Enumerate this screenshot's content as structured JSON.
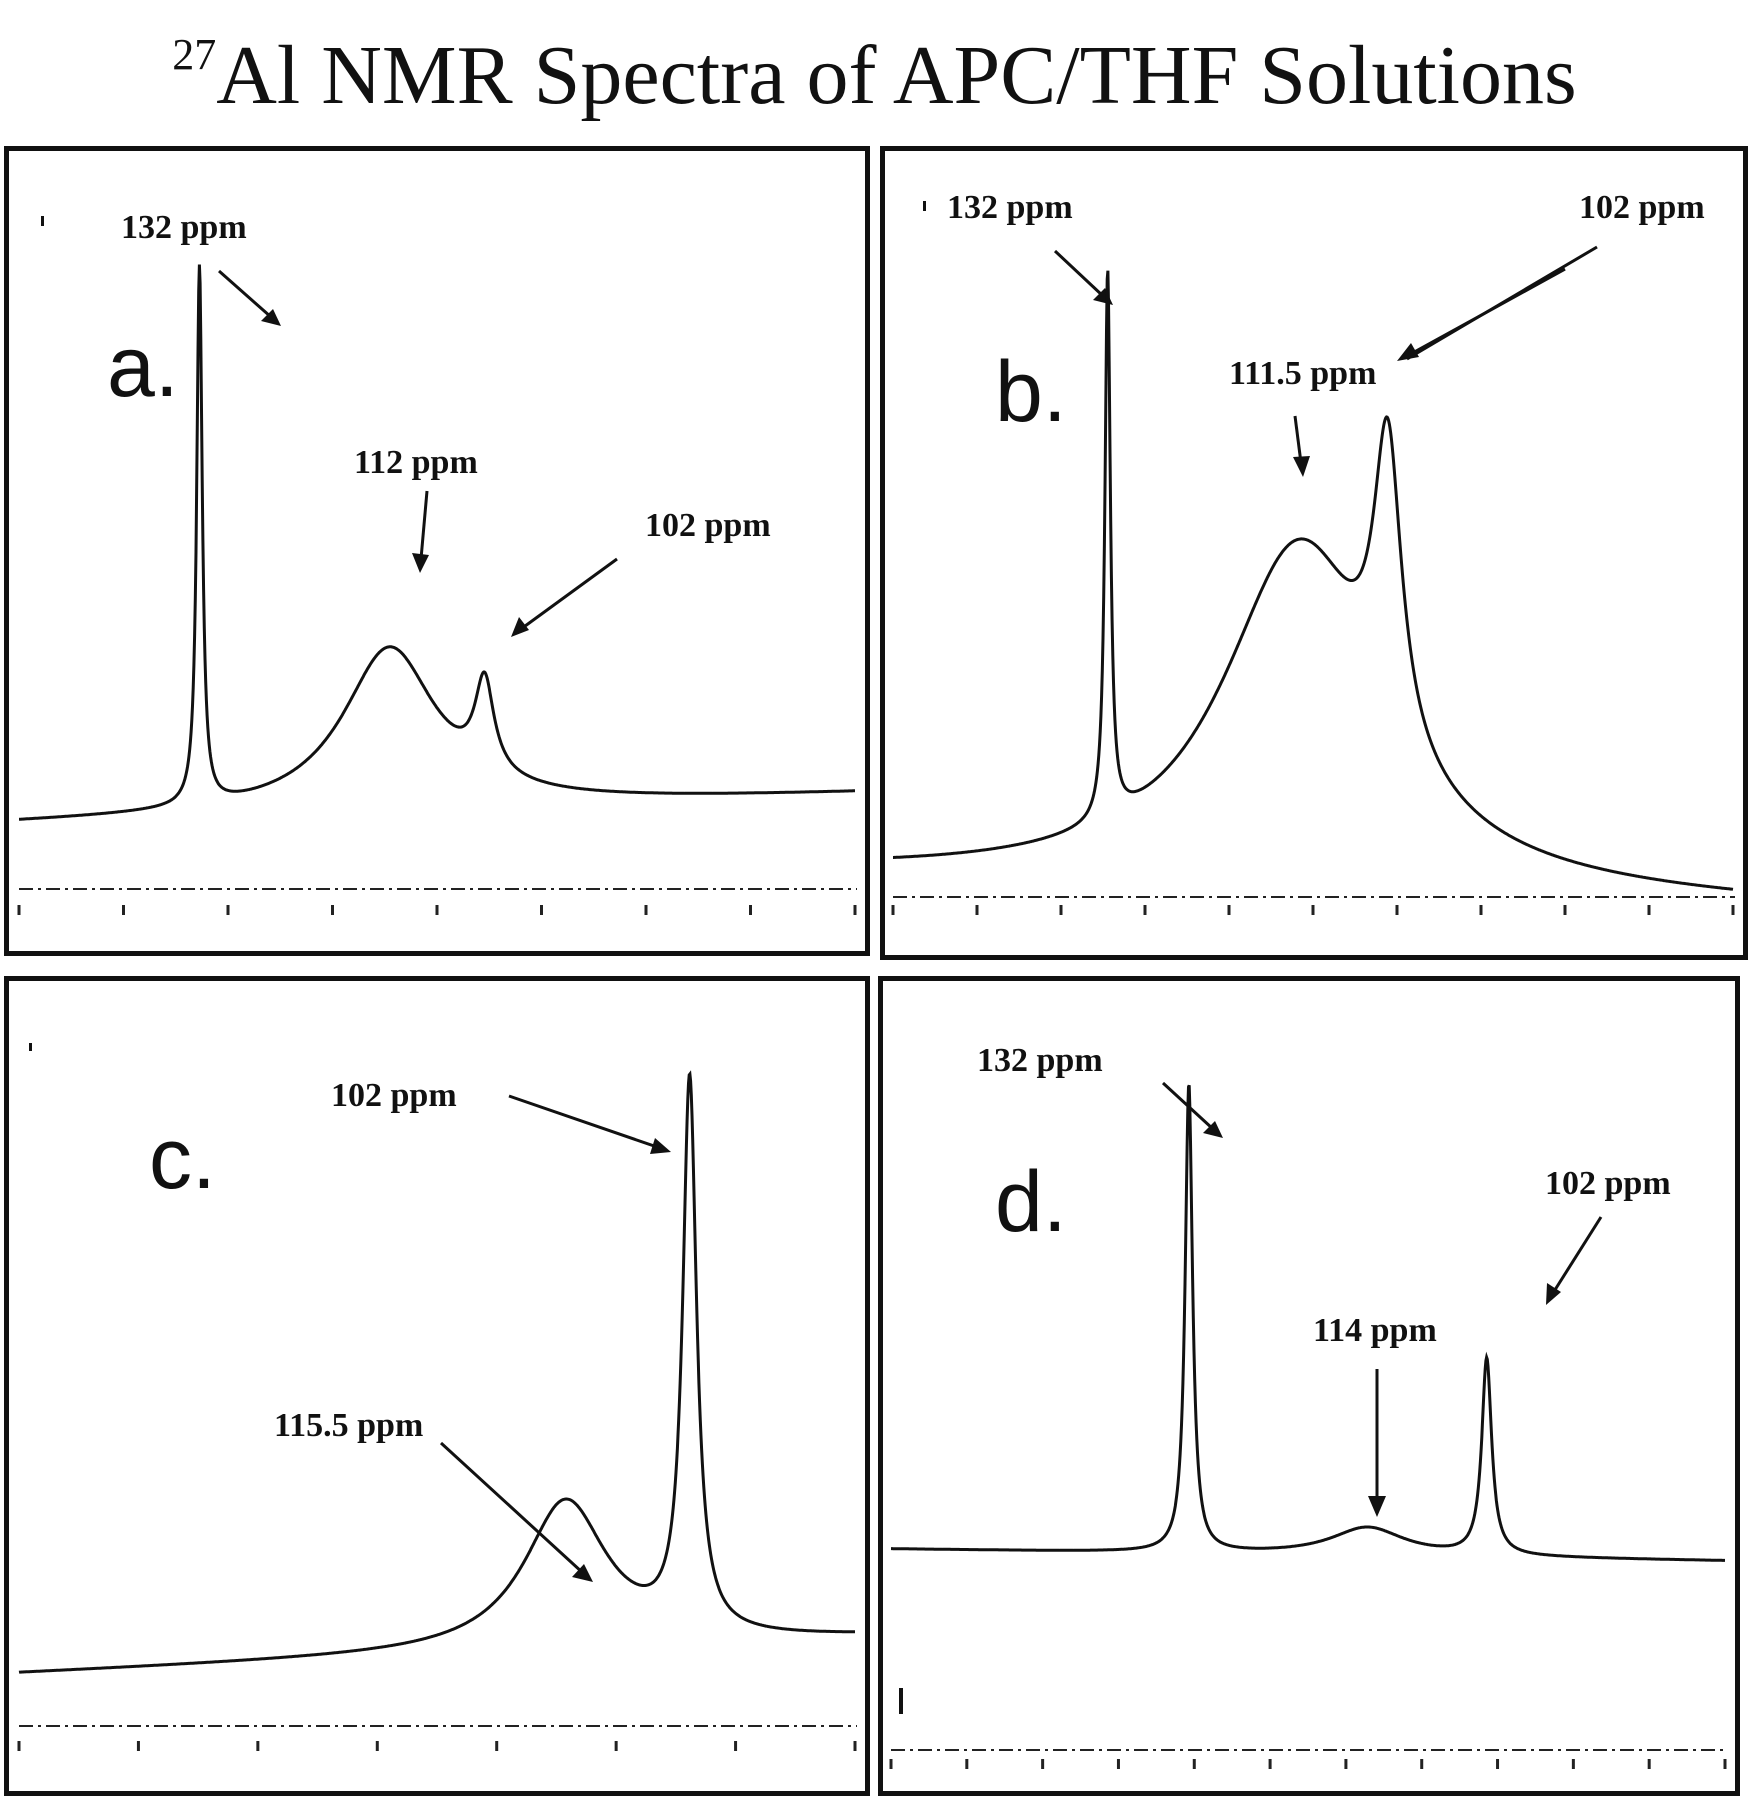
{
  "title": {
    "superscript": "27",
    "text": "Al NMR Spectra of APC/THF Solutions"
  },
  "chart_data": [
    {
      "type": "line",
      "panel": "a.",
      "xlabel": "",
      "ylabel": "",
      "x_unit": "ppm",
      "x_reversed": true,
      "xlim": [
        151,
        63
      ],
      "baseline": 0.07,
      "peaks": [
        {
          "position": 132,
          "label": "132 ppm",
          "height": 1.0,
          "width": 0.35
        },
        {
          "position": 112,
          "label": "112 ppm",
          "height": 0.3,
          "width": 6.0
        },
        {
          "position": 102,
          "label": "102 ppm",
          "height": 0.17,
          "width": 1.2
        }
      ],
      "annotations": [
        "132 ppm",
        "112 ppm",
        "102 ppm"
      ]
    },
    {
      "type": "line",
      "panel": "b.",
      "xlabel": "",
      "ylabel": "",
      "x_unit": "ppm",
      "x_reversed": true,
      "xlim": [
        155,
        65
      ],
      "baseline": 0.02,
      "peaks": [
        {
          "position": 132,
          "label": "132 ppm",
          "height": 1.0,
          "width": 0.35
        },
        {
          "position": 111.5,
          "label": "111.5 ppm",
          "height": 0.62,
          "width": 10.0
        },
        {
          "position": 102,
          "label": "102 ppm",
          "height": 0.54,
          "width": 1.8
        }
      ],
      "annotations": [
        "132 ppm",
        "111.5 ppm",
        "102 ppm"
      ]
    },
    {
      "type": "line",
      "panel": "c.",
      "xlabel": "",
      "ylabel": "",
      "x_unit": "ppm",
      "x_reversed": true,
      "xlim": [
        175,
        84
      ],
      "baseline": 0.05,
      "peaks": [
        {
          "position": 115.5,
          "label": "115.5 ppm",
          "height": 0.27,
          "width": 5.5
        },
        {
          "position": 102,
          "label": "102 ppm",
          "height": 1.0,
          "width": 0.9
        }
      ],
      "annotations": [
        "102 ppm",
        "115.5 ppm"
      ]
    },
    {
      "type": "line",
      "panel": "d.",
      "xlabel": "",
      "ylabel": "",
      "x_unit": "ppm",
      "x_reversed": true,
      "xlim": [
        162,
        78
      ],
      "baseline": 0.0,
      "peaks": [
        {
          "position": 132,
          "label": "132 ppm",
          "height": 1.0,
          "width": 0.45
        },
        {
          "position": 114,
          "label": "114 ppm",
          "height": 0.06,
          "width": 4.5
        },
        {
          "position": 102,
          "label": "102 ppm",
          "height": 0.42,
          "width": 0.6
        }
      ],
      "annotations": [
        "132 ppm",
        "114 ppm",
        "102 ppm"
      ]
    }
  ]
}
